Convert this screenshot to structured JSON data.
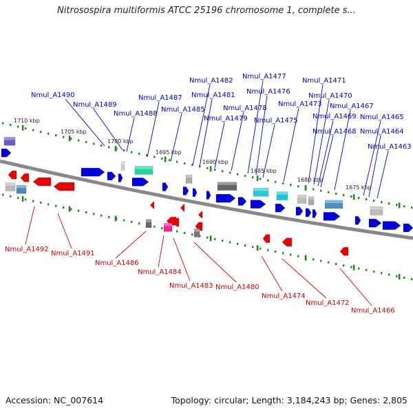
{
  "title": "Nitrosospira multiformis ATCC 25196 chromosome 1, complete s...",
  "footer": {
    "accession": "Accession: NC_007614",
    "summary": "Topology: circular; Length: 3,184,243 bp; Genes: 2,805"
  },
  "colors": {
    "forward": "#0000dd",
    "reverse": "#ee0000",
    "forward_label": "#0000cc",
    "reverse_label": "#cc0000",
    "backbone": "#888888",
    "tick": "#1a8a1a"
  },
  "scale_labels": [
    "1710 kbp",
    "1705 kbp",
    "1700 kbp",
    "1695 kbp",
    "1690 kbp",
    "1685 kbp",
    "1680 kbp",
    "1675 kbp"
  ],
  "forward_labels": [
    "Nmul_A1490",
    "Nmul_A1489",
    "Nmul_A1488",
    "Nmul_A1487",
    "Nmul_A1485",
    "Nmul_A1482",
    "Nmul_A1481",
    "Nmul_A1479",
    "Nmul_A1478",
    "Nmul_A1477",
    "Nmul_A1476",
    "Nmul_A1475",
    "Nmul_A1473",
    "Nmul_A1471",
    "Nmul_A1470",
    "Nmul_A1469",
    "Nmul_A1468",
    "Nmul_A1467",
    "Nmul_A1465",
    "Nmul_A1464",
    "Nmul_A1463"
  ],
  "reverse_labels": [
    "Nmul_A1492",
    "Nmul_A1491",
    "Nmul_A1486",
    "Nmul_A1484",
    "Nmul_A1483",
    "Nmul_A1480",
    "Nmul_A1474",
    "Nmul_A1472",
    "Nmul_A1466"
  ]
}
